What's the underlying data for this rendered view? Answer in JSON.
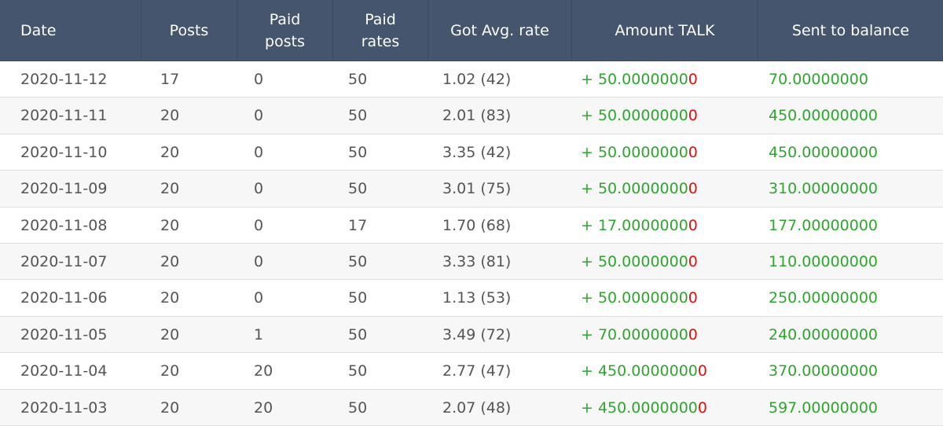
{
  "table": {
    "columns": [
      "Date",
      "Posts",
      "Paid posts",
      "Paid rates",
      "Got Avg. rate",
      "Amount TALK",
      "Sent to balance"
    ],
    "rows": [
      [
        "2020-11-12",
        "17",
        "0",
        "50",
        "1.02 (42)",
        {
          "main": "+ 50.0000000",
          "tail": "0"
        },
        "70.00000000"
      ],
      [
        "2020-11-11",
        "20",
        "0",
        "50",
        "2.01 (83)",
        {
          "main": "+ 50.0000000",
          "tail": "0"
        },
        "450.00000000"
      ],
      [
        "2020-11-10",
        "20",
        "0",
        "50",
        "3.35 (42)",
        {
          "main": "+ 50.0000000",
          "tail": "0"
        },
        "450.00000000"
      ],
      [
        "2020-11-09",
        "20",
        "0",
        "50",
        "3.01 (75)",
        {
          "main": "+ 50.0000000",
          "tail": "0"
        },
        "310.00000000"
      ],
      [
        "2020-11-08",
        "20",
        "0",
        "17",
        "1.70 (68)",
        {
          "main": "+ 17.0000000",
          "tail": "0"
        },
        "177.00000000"
      ],
      [
        "2020-11-07",
        "20",
        "0",
        "50",
        "3.33 (81)",
        {
          "main": "+ 50.0000000",
          "tail": "0"
        },
        "110.00000000"
      ],
      [
        "2020-11-06",
        "20",
        "0",
        "50",
        "1.13 (53)",
        {
          "main": "+ 50.0000000",
          "tail": "0"
        },
        "250.00000000"
      ],
      [
        "2020-11-05",
        "20",
        "1",
        "50",
        "3.49 (72)",
        {
          "main": "+ 70.0000000",
          "tail": "0"
        },
        "240.00000000"
      ],
      [
        "2020-11-04",
        "20",
        "20",
        "50",
        "2.77 (47)",
        {
          "main": "+ 450.0000000",
          "tail": "0"
        },
        "370.00000000"
      ],
      [
        "2020-11-03",
        "20",
        "20",
        "50",
        "2.07 (48)",
        {
          "main": "+ 450.0000000",
          "tail": "0"
        },
        "597.00000000"
      ]
    ]
  }
}
